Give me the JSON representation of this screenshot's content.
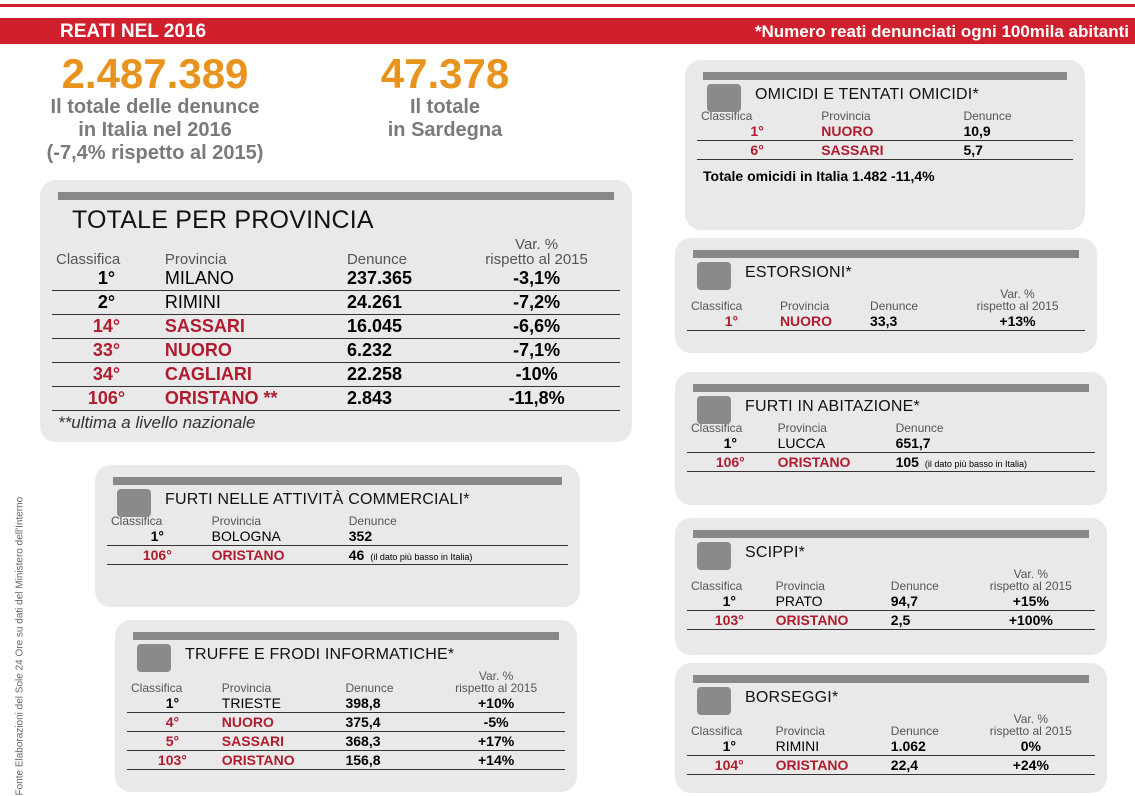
{
  "header": {
    "title": "REATI NEL 2016",
    "note": "*Numero reati denunciati ogni 100mila abitanti"
  },
  "summary": [
    {
      "value": "2.487.389",
      "lines": [
        "Il totale delle denunce",
        "in Italia nel 2016",
        "(-7,4% rispetto al 2015)"
      ]
    },
    {
      "value": "47.378",
      "lines": [
        "Il totale",
        "in Sardegna"
      ]
    }
  ],
  "source": "Fonte Elaborazioni del Sole 24 Ore su dati del Ministero dell'Interno",
  "panels": [
    {
      "title": "TOTALE PER PROVINCIA",
      "headers": [
        "Classifica",
        "Provincia",
        "Denunce",
        [
          "Var. %",
          "rispetto al 2015"
        ]
      ],
      "rows": [
        {
          "cells": [
            "1°",
            "MILANO",
            "237.365",
            "-3,1%"
          ],
          "color": "#000000"
        },
        {
          "cells": [
            "2°",
            "RIMINI",
            "24.261",
            "-7,2%"
          ],
          "color": "#000000"
        },
        {
          "cells": [
            "14°",
            "SASSARI",
            "16.045",
            "-6,6%"
          ],
          "color": "#b01c2e"
        },
        {
          "cells": [
            "33°",
            "NUORO",
            "6.232",
            "-7,1%"
          ],
          "color": "#b01c2e"
        },
        {
          "cells": [
            "34°",
            "CAGLIARI",
            "22.258",
            "-10%"
          ],
          "color": "#b01c2e"
        },
        {
          "cells": [
            "106°",
            "ORISTANO **",
            "2.843",
            "-11,8%"
          ],
          "color": "#b01c2e"
        }
      ],
      "footer": "**ultima a livello nazionale"
    },
    {
      "title": "FURTI NELLE ATTIVITÀ COMMERCIALI*",
      "headers": [
        "Classifica",
        "Provincia",
        "Denunce"
      ],
      "rows": [
        {
          "cells": [
            "1°",
            "BOLOGNA",
            "352"
          ],
          "color": "#000000"
        },
        {
          "cells": [
            "106°",
            "ORISTANO",
            "46"
          ],
          "note": "(il dato più basso in Italia)",
          "color": "#b01c2e"
        }
      ]
    },
    {
      "title": "TRUFFE E FRODI INFORMATICHE*",
      "headers": [
        "Classifica",
        "Provincia",
        "Denunce",
        [
          "Var. %",
          "rispetto al 2015"
        ]
      ],
      "rows": [
        {
          "cells": [
            "1°",
            "TRIESTE",
            "398,8",
            "+10%"
          ],
          "color": "#000000"
        },
        {
          "cells": [
            "4°",
            "NUORO",
            "375,4",
            "-5%"
          ],
          "color": "#b01c2e"
        },
        {
          "cells": [
            "5°",
            "SASSARI",
            "368,3",
            "+17%"
          ],
          "color": "#b01c2e"
        },
        {
          "cells": [
            "103°",
            "ORISTANO",
            "156,8",
            "+14%"
          ],
          "color": "#b01c2e"
        }
      ]
    },
    {
      "title": "OMICIDI E TENTATI OMICIDI*",
      "headers": [
        "Classifica",
        "Provincia",
        "Denunce"
      ],
      "rows": [
        {
          "cells": [
            "1°",
            "NUORO",
            "10,9"
          ],
          "color": "#b01c2e"
        },
        {
          "cells": [
            "6°",
            "SASSARI",
            "5,7"
          ],
          "color": "#b01c2e"
        }
      ],
      "footer": "Totale omicidi in Italia 1.482  -11,4%"
    },
    {
      "title": "ESTORSIONI*",
      "headers": [
        "Classifica",
        "Provincia",
        "Denunce",
        [
          "Var. %",
          "rispetto al 2015"
        ]
      ],
      "rows": [
        {
          "cells": [
            "1°",
            "NUORO",
            "33,3",
            "+13%"
          ],
          "color": "#b01c2e"
        }
      ]
    },
    {
      "title": "FURTI IN ABITAZIONE*",
      "headers": [
        "Classifica",
        "Provincia",
        "Denunce"
      ],
      "rows": [
        {
          "cells": [
            "1°",
            "LUCCA",
            "651,7"
          ],
          "color": "#000000"
        },
        {
          "cells": [
            "106°",
            "ORISTANO",
            "105"
          ],
          "note": "(il dato più basso in Italia)",
          "color": "#b01c2e"
        }
      ]
    },
    {
      "title": "SCIPPI*",
      "headers": [
        "Classifica",
        "Provincia",
        "Denunce",
        [
          "Var. %",
          "rispetto al 2015"
        ]
      ],
      "rows": [
        {
          "cells": [
            "1°",
            "PRATO",
            "94,7",
            "+15%"
          ],
          "color": "#000000"
        },
        {
          "cells": [
            "103°",
            "ORISTANO",
            "2,5",
            "+100%"
          ],
          "color": "#b01c2e"
        }
      ]
    },
    {
      "title": "BORSEGGI*",
      "headers": [
        "Classifica",
        "Provincia",
        "Denunce",
        [
          "Var. %",
          "rispetto al 2015"
        ]
      ],
      "rows": [
        {
          "cells": [
            "1°",
            "RIMINI",
            "1.062",
            "0%"
          ],
          "color": "#000000"
        },
        {
          "cells": [
            "104°",
            "ORISTANO",
            "22,4",
            "+24%"
          ],
          "color": "#b01c2e"
        }
      ]
    }
  ]
}
